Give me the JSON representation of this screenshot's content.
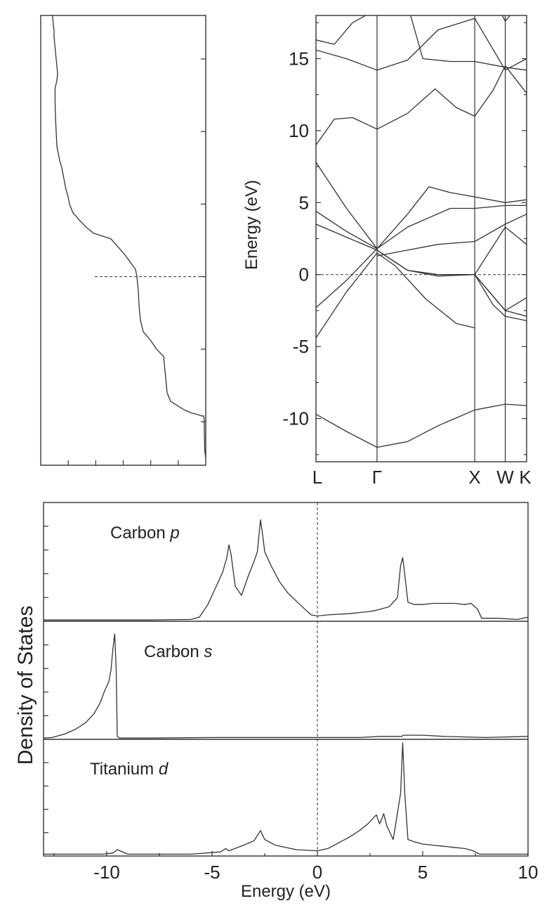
{
  "chart_data": [
    {
      "type": "line",
      "name": "total_dos_sideways",
      "ylim": [
        -13,
        18
      ],
      "fermi_level": 0,
      "x": [
        0,
        1.4,
        1.8,
        2.0,
        2.1,
        2.3,
        3,
        6,
        9,
        12,
        20,
        30,
        50,
        55,
        60,
        70,
        80,
        89,
        93,
        95,
        96,
        98,
        100,
        115,
        135,
        160,
        170,
        178,
        182,
        185,
        188,
        190,
        194,
        196,
        199,
        203,
        205,
        208,
        210,
        212,
        213,
        214,
        214.5,
        214.6,
        214.5,
        213,
        212,
        211,
        212,
        213,
        214,
        215,
        216,
        216,
        217,
        217,
        218,
        218,
        219
      ],
      "y": [
        -12.5,
        -12,
        -11,
        -10.6,
        -10.2,
        -9.8,
        -9.6,
        -9.6,
        -9.55,
        -9.5,
        -9.4,
        -9.2,
        -8.6,
        -8,
        -5.5,
        -5,
        -4.3,
        -3.8,
        -3.0,
        -2.0,
        -1.0,
        0,
        0.5,
        1.5,
        2.6,
        3.0,
        3.4,
        3.8,
        4.0,
        4.2,
        4.3,
        4.5,
        5.0,
        5.5,
        6.0,
        7.0,
        7.5,
        8.0,
        8.5,
        9.0,
        10.0,
        11.0,
        12.0,
        12.5,
        13.0,
        13.3,
        13.5,
        14.0,
        14.5,
        15.0,
        15.5,
        16.0,
        16.5,
        17.0,
        17.3,
        17.5,
        17.8,
        18.0,
        18.0
      ]
    },
    {
      "type": "line",
      "name": "band_structure",
      "xlabel": "",
      "ylabel": "Energy (eV)",
      "ylim": [
        -13,
        18
      ],
      "yticks": [
        -10,
        -5,
        0,
        5,
        10,
        15
      ],
      "kpoints": [
        "L",
        "Γ",
        "X",
        "W",
        "K"
      ],
      "kpoint_positions": [
        0,
        1,
        2.6,
        3.1,
        3.45
      ],
      "fermi_level": 0,
      "series": [
        {
          "x": [
            0,
            0.5,
            1,
            1.5,
            2,
            2.6,
            3.1,
            3.45
          ],
          "y": [
            -9.7,
            -10.9,
            -12,
            -11.6,
            -10.5,
            -9.4,
            -9,
            -9.1
          ]
        },
        {
          "x": [
            0,
            0.5,
            1,
            1.3,
            1.8,
            2.3,
            2.6
          ],
          "y": [
            -4.4,
            -1.2,
            1.5,
            0.6,
            -1.7,
            -3.4,
            -3.7
          ]
        },
        {
          "x": [
            0,
            0.5,
            1
          ],
          "y": [
            -2.3,
            -0.4,
            1.8
          ]
        },
        {
          "x": [
            0,
            0.5,
            1,
            1.5,
            2,
            2.6,
            3.1,
            3.45
          ],
          "y": [
            3.5,
            2.6,
            1.7,
            0.3,
            0,
            0,
            -2.5,
            -1.6
          ]
        },
        {
          "x": [
            0,
            0.5,
            1,
            1.5,
            2.2,
            2.6,
            3.1,
            3.45
          ],
          "y": [
            4.4,
            3.0,
            1.8,
            3.3,
            4.6,
            4.6,
            4.8,
            4.8
          ]
        },
        {
          "x": [
            0,
            0.5,
            1,
            1.5,
            1.85,
            2.2,
            2.6,
            3.1,
            3.45
          ],
          "y": [
            7.8,
            4.6,
            1.8,
            4.2,
            6.1,
            5.7,
            5.4,
            5,
            5.2
          ]
        },
        {
          "x": [
            1,
            1.5,
            2,
            2.6,
            3.1,
            3.45
          ],
          "y": [
            1.3,
            1.7,
            2.1,
            2.3,
            3.5,
            4.2
          ]
        },
        {
          "x": [
            1,
            1.5,
            2,
            2.6,
            3.1,
            3.45
          ],
          "y": [
            1.7,
            0.3,
            -0.1,
            0,
            3.3,
            2.1
          ]
        },
        {
          "x": [
            2.6,
            2.9,
            3.1,
            3.45
          ],
          "y": [
            0,
            -2.1,
            -2.9,
            -3.2
          ]
        },
        {
          "x": [
            2.6,
            2.9,
            3.1,
            3.45
          ],
          "y": [
            0,
            -1.5,
            -2.5,
            -2.9
          ]
        },
        {
          "x": [
            0,
            0.3,
            0.6,
            1,
            1.5,
            1.95,
            2.3,
            2.6,
            2.9,
            3.1,
            3.45
          ],
          "y": [
            9,
            10.8,
            10.9,
            10.1,
            11.2,
            12.9,
            11.6,
            11,
            12.8,
            14.5,
            12.6
          ]
        },
        {
          "x": [
            0,
            0.5,
            1,
            1.5,
            2,
            2.6,
            3.1,
            3.45
          ],
          "y": [
            15.6,
            15.0,
            14.2,
            14.9,
            17.0,
            17.8,
            14.2,
            15
          ]
        },
        {
          "x": [
            1.55,
            1.75,
            2.2,
            2.6,
            3.1,
            3.45
          ],
          "y": [
            18,
            15,
            14.8,
            14.8,
            14.4,
            14.2
          ]
        },
        {
          "x": [
            0,
            0.3,
            0.6,
            0.9
          ],
          "y": [
            16.3,
            16.0,
            17.5,
            18.2
          ]
        },
        {
          "x": [
            3.05,
            3.1,
            3.18
          ],
          "y": [
            18,
            17.6,
            18
          ]
        }
      ]
    },
    {
      "type": "line",
      "name": "projected_dos",
      "xlabel": "Energy (eV)",
      "ylabel": "Density of States",
      "xlim": [
        -13,
        10
      ],
      "xticks": [
        -10,
        -5,
        0,
        5,
        10
      ],
      "fermi_level": 0,
      "panels": [
        {
          "label": "Carbon",
          "orbital": "p",
          "ymax": 1.0,
          "x": [
            -13,
            -8,
            -6,
            -5.6,
            -5.2,
            -4.8,
            -4.5,
            -4.3,
            -4.2,
            -4.1,
            -3.9,
            -3.6,
            -3.3,
            -3.0,
            -2.85,
            -2.7,
            -2.6,
            -2.5,
            -2.2,
            -1.8,
            -1.4,
            -1.0,
            -0.6,
            -0.3,
            0,
            0.5,
            1.5,
            2.5,
            2.8,
            3.0,
            3.4,
            3.8,
            3.95,
            4.05,
            4.15,
            4.3,
            4.6,
            5.0,
            5.5,
            6.0,
            6.5,
            7.0,
            7.3,
            7.6,
            7.8,
            8.5,
            9.5,
            10
          ],
          "y": [
            0.005,
            0.005,
            0.01,
            0.03,
            0.14,
            0.3,
            0.42,
            0.55,
            0.66,
            0.58,
            0.3,
            0.22,
            0.38,
            0.52,
            0.6,
            0.88,
            0.75,
            0.6,
            0.48,
            0.34,
            0.24,
            0.17,
            0.1,
            0.05,
            0.04,
            0.05,
            0.06,
            0.08,
            0.09,
            0.1,
            0.12,
            0.2,
            0.48,
            0.55,
            0.4,
            0.16,
            0.14,
            0.14,
            0.15,
            0.15,
            0.15,
            0.14,
            0.15,
            0.1,
            0.02,
            0.02,
            0.01,
            0.03
          ]
        },
        {
          "label": "Carbon",
          "orbital": "s",
          "ymax": 1.0,
          "x": [
            -13,
            -12.6,
            -12,
            -11.5,
            -11,
            -10.6,
            -10.3,
            -10.1,
            -9.9,
            -9.8,
            -9.7,
            -9.62,
            -9.55,
            -9.5,
            -9.4,
            -9.2,
            -8,
            -5,
            -2,
            0,
            2,
            3,
            4,
            4.1,
            5,
            6,
            8,
            10
          ],
          "y": [
            0.005,
            0.01,
            0.04,
            0.08,
            0.14,
            0.22,
            0.32,
            0.42,
            0.5,
            0.6,
            0.8,
            0.92,
            0.6,
            0.02,
            0.005,
            0.005,
            0.005,
            0.01,
            0.01,
            0.01,
            0.01,
            0.02,
            0.02,
            0.03,
            0.03,
            0.02,
            0.01,
            0.02
          ]
        },
        {
          "label": "Titanium",
          "orbital": "d",
          "ymax": 1.0,
          "x": [
            -13,
            -10.2,
            -9.7,
            -9.5,
            -9.0,
            -6,
            -4.6,
            -4.35,
            -4.2,
            -3.5,
            -3.0,
            -2.7,
            -2.5,
            -2.0,
            -1.0,
            0,
            0.5,
            1.0,
            1.5,
            2.0,
            2.4,
            2.8,
            2.95,
            3.05,
            3.15,
            3.3,
            3.6,
            3.95,
            4.05,
            4.15,
            4.3,
            4.6,
            5.0,
            5.5,
            6.0,
            6.5,
            7.0,
            7.4,
            7.7,
            8.2,
            9,
            10
          ],
          "y": [
            0.01,
            0.01,
            0.02,
            0.05,
            0.01,
            0.01,
            0.03,
            0.06,
            0.04,
            0.09,
            0.13,
            0.22,
            0.14,
            0.09,
            0.05,
            0.04,
            0.06,
            0.11,
            0.16,
            0.22,
            0.28,
            0.36,
            0.28,
            0.32,
            0.37,
            0.26,
            0.14,
            0.55,
            1.0,
            0.55,
            0.14,
            0.12,
            0.1,
            0.09,
            0.08,
            0.07,
            0.06,
            0.04,
            0.01,
            0.01,
            0.01,
            0.01
          ]
        }
      ]
    }
  ]
}
